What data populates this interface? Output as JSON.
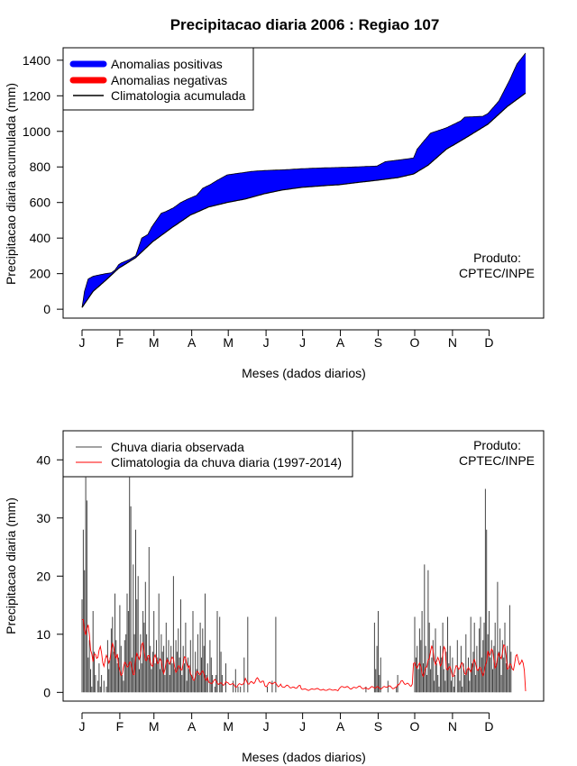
{
  "title": "Precipitacao diaria 2006 : Regiao 107",
  "chart_data": [
    {
      "type": "area",
      "ylabel": "Precipitacao diaria acumulada (mm)",
      "xlabel": "Meses (dados diarios)",
      "month_ticks": [
        "J",
        "F",
        "M",
        "A",
        "M",
        "J",
        "J",
        "A",
        "S",
        "O",
        "N",
        "D"
      ],
      "y_ticks": [
        0,
        200,
        400,
        600,
        800,
        1000,
        1200,
        1400
      ],
      "xlim": [
        1,
        365
      ],
      "ylim": [
        -50,
        1470
      ],
      "legend": [
        {
          "label": "Anomalias positivas",
          "color": "#0000ff"
        },
        {
          "label": "Anomalias negativas",
          "color": "#ff0000"
        },
        {
          "label": "Climatologia acumulada",
          "color": "#000000"
        }
      ],
      "annotation": [
        "Produto:",
        "CPTEC/INPE"
      ],
      "climatology_cumulative": {
        "day": [
          1,
          10,
          20,
          31,
          45,
          59,
          75,
          90,
          105,
          120,
          135,
          151,
          165,
          181,
          200,
          212,
          230,
          243,
          260,
          273,
          285,
          300,
          315,
          334,
          350,
          365
        ],
        "value": [
          10,
          100,
          160,
          230,
          290,
          380,
          460,
          530,
          575,
          600,
          620,
          650,
          670,
          685,
          695,
          700,
          715,
          725,
          740,
          760,
          810,
          900,
          960,
          1040,
          1140,
          1215
        ]
      },
      "observed_cumulative": {
        "day": [
          1,
          3,
          6,
          10,
          20,
          25,
          28,
          31,
          33,
          40,
          45,
          50,
          55,
          58,
          62,
          66,
          70,
          76,
          82,
          88,
          95,
          100,
          106,
          112,
          120,
          130,
          140,
          151,
          170,
          181,
          200,
          212,
          225,
          243,
          250,
          262,
          273,
          276,
          282,
          287,
          300,
          312,
          315,
          330,
          334,
          343,
          352,
          358,
          365
        ],
        "value": [
          10,
          100,
          170,
          185,
          200,
          205,
          220,
          250,
          260,
          280,
          300,
          400,
          420,
          460,
          500,
          540,
          550,
          570,
          600,
          620,
          640,
          680,
          700,
          725,
          755,
          765,
          775,
          780,
          785,
          790,
          795,
          797,
          800,
          805,
          830,
          840,
          850,
          900,
          950,
          990,
          1020,
          1060,
          1080,
          1085,
          1100,
          1170,
          1290,
          1380,
          1440
        ]
      }
    },
    {
      "type": "bar",
      "ylabel": "Precipitacao diaria (mm)",
      "xlabel": "Meses (dados diarios)",
      "month_ticks": [
        "J",
        "F",
        "M",
        "A",
        "M",
        "J",
        "J",
        "A",
        "S",
        "O",
        "N",
        "D"
      ],
      "y_ticks": [
        0,
        10,
        20,
        30,
        40
      ],
      "xlim": [
        1,
        365
      ],
      "ylim": [
        -1.5,
        45
      ],
      "legend": [
        {
          "label": "Chuva diaria observada",
          "color": "#444444"
        },
        {
          "label": "Climatologia da chuva diaria (1997-2014)",
          "color": "#ff0000"
        }
      ],
      "annotation": [
        "Produto:",
        "CPTEC/INPE"
      ],
      "observed_daily_mm": [
        16,
        28,
        21,
        37,
        33,
        6,
        9,
        4,
        1,
        14,
        7,
        3,
        0,
        2,
        5,
        1,
        3,
        0,
        2,
        0,
        1,
        9,
        4,
        6,
        11,
        13,
        7,
        17,
        9,
        5,
        6,
        15,
        8,
        3,
        2,
        9,
        10,
        17,
        14,
        37,
        32,
        6,
        22,
        10,
        28,
        16,
        20,
        4,
        10,
        5,
        14,
        12,
        19,
        10,
        6,
        25,
        8,
        4,
        7,
        14,
        5,
        9,
        6,
        17,
        4,
        10,
        7,
        8,
        3,
        12,
        6,
        9,
        3,
        8,
        5,
        20,
        4,
        9,
        7,
        11,
        6,
        16,
        3,
        8,
        5,
        12,
        2,
        6,
        4,
        9,
        3,
        14,
        2,
        7,
        4,
        10,
        3,
        12,
        6,
        11,
        8,
        17,
        3,
        5,
        0,
        9,
        6,
        3,
        0,
        1,
        3,
        14,
        0,
        13,
        7,
        3,
        0,
        0,
        5,
        0,
        0,
        0,
        0,
        0,
        2,
        0,
        4,
        0,
        1,
        0,
        1,
        0,
        0,
        6,
        0,
        0,
        13,
        0,
        0,
        0,
        0,
        0,
        0,
        0,
        0,
        0,
        0,
        0,
        0,
        0,
        0,
        0,
        1,
        0,
        0,
        0,
        2,
        0,
        0,
        13,
        0,
        0,
        0,
        0,
        0,
        0,
        0,
        0,
        0,
        0,
        0,
        0,
        0,
        0,
        0,
        0,
        0,
        0,
        0,
        0,
        0,
        0,
        0,
        0,
        0,
        0,
        0,
        0,
        0,
        0,
        0,
        0,
        0,
        0,
        0,
        0,
        0,
        0,
        0,
        0,
        0,
        0,
        0,
        0,
        0,
        0,
        0,
        0,
        0,
        0,
        0,
        0,
        0,
        0,
        0,
        0,
        0,
        0,
        0,
        0,
        0,
        0,
        0,
        0,
        0,
        0,
        0,
        0,
        0,
        0,
        0,
        0,
        0,
        1,
        0,
        0,
        0,
        0,
        0,
        0,
        12,
        4,
        8,
        14,
        3,
        6,
        0,
        0,
        0,
        0,
        0,
        2,
        0,
        0,
        0,
        0,
        0,
        0,
        1,
        3,
        0,
        0,
        0,
        0,
        0,
        0,
        0,
        0,
        0,
        0,
        0,
        0,
        0,
        13,
        6,
        8,
        4,
        11,
        9,
        14,
        5,
        22,
        8,
        3,
        21,
        12,
        4,
        6,
        9,
        2,
        11,
        5,
        3,
        1,
        8,
        6,
        12,
        4,
        2,
        7,
        13,
        5,
        8,
        2,
        6,
        1,
        3,
        0,
        9,
        4,
        2,
        8,
        1,
        5,
        3,
        10,
        4,
        6,
        2,
        13,
        5,
        7,
        12,
        3,
        8,
        4,
        11,
        13,
        6,
        9,
        12,
        35,
        28,
        10,
        14,
        6,
        9,
        4,
        8,
        12,
        5,
        19,
        7,
        11,
        3,
        9,
        6,
        12,
        5,
        8,
        4,
        15,
        7
      ]
    }
  ]
}
